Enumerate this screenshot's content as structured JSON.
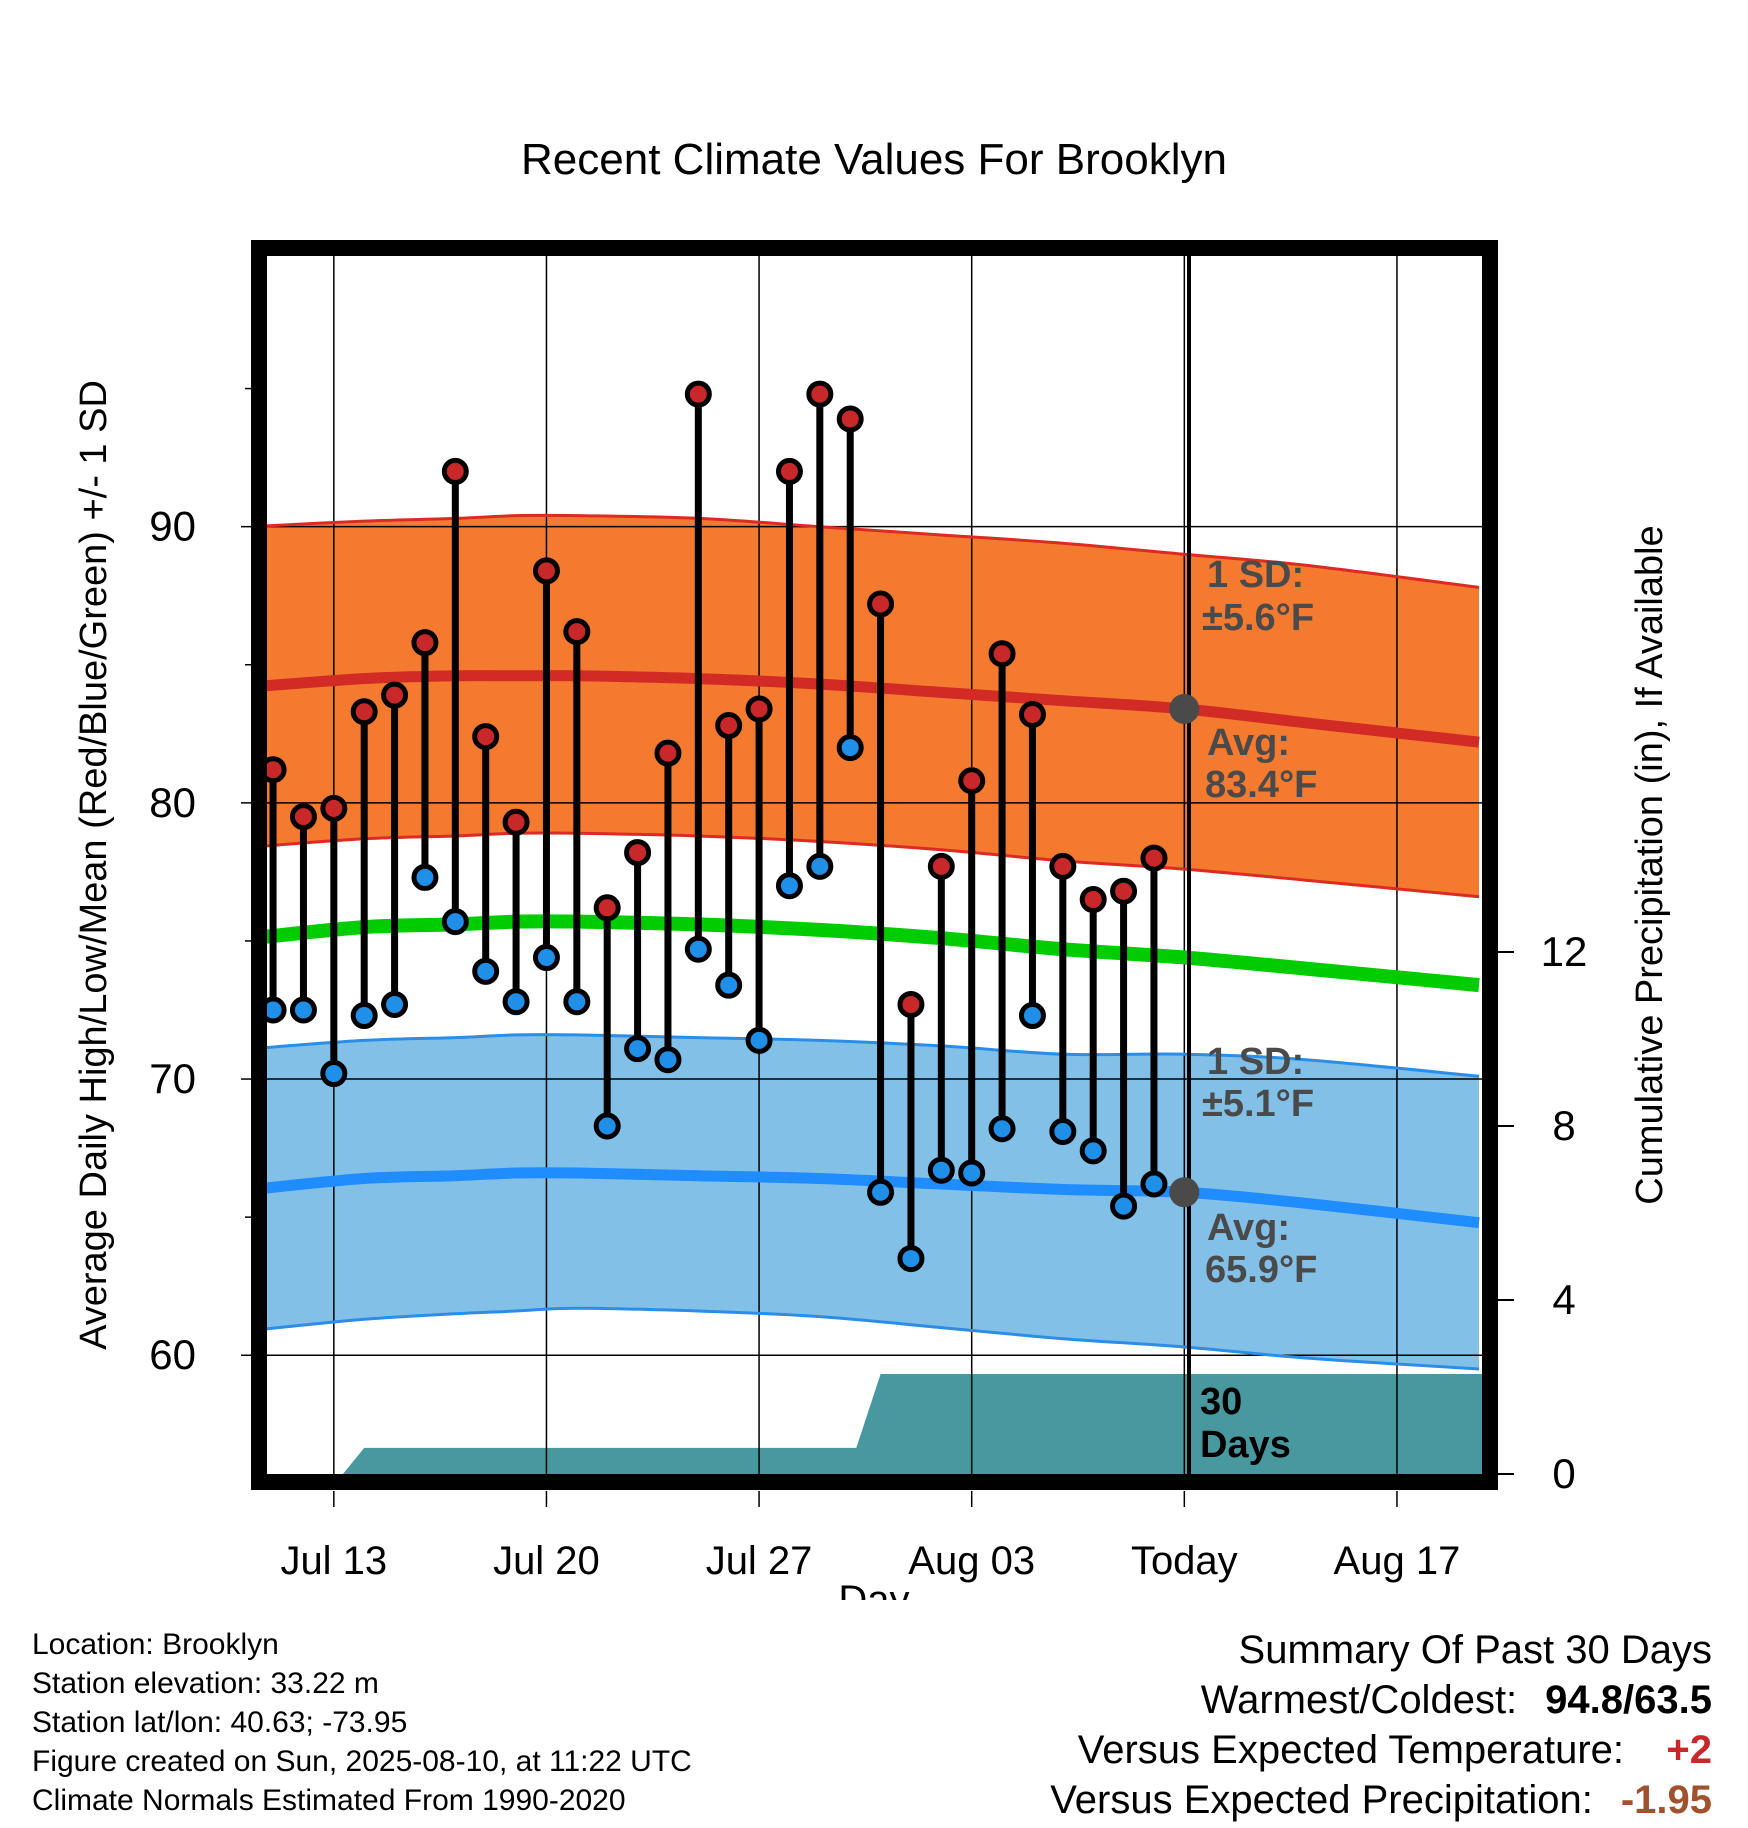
{
  "chart_data": {
    "type": "line",
    "title": "Recent Climate Values For Brooklyn",
    "xlabel": "Day",
    "ylabel": "Average Daily High/Low/Mean (Red/Blue/Green) +/- 1 SD",
    "y2label": "Cumulative Precipitation (in), If Available",
    "ylim": [
      55.7,
      99.8
    ],
    "y2lim": [
      0,
      28
    ],
    "xlim": [
      -2.2,
      37.8
    ],
    "y_ticks": [
      "60",
      "70",
      "80",
      "90"
    ],
    "y2_ticks": [
      "0",
      "4",
      "8",
      "12"
    ],
    "x_ticks": [
      {
        "day": 0,
        "label": "Jul 13"
      },
      {
        "day": 7,
        "label": "Jul 20"
      },
      {
        "day": 14,
        "label": "Jul 27"
      },
      {
        "day": 21,
        "label": "Aug 03"
      },
      {
        "day": 28,
        "label": "Today"
      },
      {
        "day": 35,
        "label": "Aug 17"
      }
    ],
    "today_day": 28,
    "grid": true,
    "normals": {
      "day": [
        -2.7,
        1,
        4,
        6,
        8,
        12,
        16,
        20,
        24,
        28,
        32,
        37.7
      ],
      "high_mean": [
        84.2,
        84.5,
        84.6,
        84.6,
        84.6,
        84.5,
        84.3,
        84.0,
        83.7,
        83.4,
        82.9,
        82.2
      ],
      "high_upper": [
        90.0,
        90.2,
        90.3,
        90.4,
        90.4,
        90.3,
        90.0,
        89.7,
        89.4,
        89.0,
        88.6,
        87.8
      ],
      "high_lower": [
        78.4,
        78.7,
        78.8,
        78.9,
        78.9,
        78.8,
        78.6,
        78.3,
        77.9,
        77.6,
        77.2,
        76.6
      ],
      "mean": [
        75.1,
        75.5,
        75.6,
        75.7,
        75.7,
        75.6,
        75.4,
        75.1,
        74.7,
        74.4,
        74.0,
        73.4
      ],
      "low_mean": [
        66.0,
        66.4,
        66.5,
        66.6,
        66.6,
        66.5,
        66.4,
        66.2,
        66.0,
        65.9,
        65.5,
        64.8
      ],
      "low_upper": [
        71.1,
        71.4,
        71.5,
        71.6,
        71.6,
        71.5,
        71.4,
        71.2,
        70.9,
        70.9,
        70.7,
        70.1
      ],
      "low_lower": [
        60.9,
        61.3,
        61.5,
        61.6,
        61.7,
        61.6,
        61.4,
        61.0,
        60.6,
        60.3,
        59.9,
        59.5
      ]
    },
    "precip": {
      "day": [
        -2.2,
        0.3,
        1,
        10,
        17.2,
        18,
        37.8
      ],
      "values": [
        0,
        0,
        0.6,
        0.6,
        0.6,
        2.3,
        2.3
      ]
    },
    "series": [
      {
        "name": "High",
        "days": [
          -2,
          -1,
          0,
          1,
          2,
          3,
          4,
          5,
          6,
          7,
          8,
          9,
          10,
          11,
          12,
          13,
          14,
          15,
          16,
          17,
          18,
          19,
          20,
          21,
          22,
          23,
          24,
          25,
          26,
          27
        ],
        "values": [
          81.2,
          79.5,
          79.8,
          83.3,
          83.9,
          85.8,
          92.0,
          82.4,
          79.3,
          88.4,
          86.2,
          76.2,
          78.2,
          81.8,
          94.8,
          82.8,
          83.4,
          92.0,
          94.8,
          93.9,
          87.2,
          72.7,
          77.7,
          80.8,
          85.4,
          83.2,
          77.7,
          76.5,
          76.8,
          78.0
        ]
      },
      {
        "name": "Low",
        "days": [
          -2,
          -1,
          0,
          1,
          2,
          3,
          4,
          5,
          6,
          7,
          8,
          9,
          10,
          11,
          12,
          13,
          14,
          15,
          16,
          17,
          18,
          19,
          20,
          21,
          22,
          23,
          24,
          25,
          26,
          27
        ],
        "values": [
          72.5,
          72.5,
          70.2,
          72.3,
          72.7,
          77.3,
          75.7,
          73.9,
          72.8,
          74.4,
          72.8,
          68.3,
          71.1,
          70.7,
          74.7,
          73.4,
          71.4,
          77.0,
          77.7,
          82.0,
          65.9,
          63.5,
          66.7,
          66.6,
          68.2,
          72.3,
          68.1,
          67.4,
          65.4,
          66.2
        ]
      }
    ],
    "annotations": {
      "high_sd_label": "1 SD:",
      "high_sd_value": "±5.6°F",
      "high_avg_label": "Avg:",
      "high_avg_value": "83.4°F",
      "high_avg": 83.4,
      "low_sd_label": "1 SD:",
      "low_sd_value": "±5.1°F",
      "low_avg_label": "Avg:",
      "low_avg_value": "65.9°F",
      "low_avg": 65.9,
      "days_label_1": "30",
      "days_label_2": "Days"
    },
    "colors": {
      "high_band": "#f47a30",
      "high_line": "#d22a24",
      "high_edge": "#dd2a22",
      "mean_line": "#00cc00",
      "low_band": "#82c0e8",
      "low_line": "#1f8cff",
      "low_edge": "#2a8ee8",
      "precip": "#48999f",
      "high_dot": "#c8282a",
      "low_dot": "#1f8fe8",
      "annotation": "#4a4a4a"
    }
  },
  "info": {
    "location": "Location: Brooklyn",
    "elevation": "Station elevation: 33.22 m",
    "latlon": "Station lat/lon: 40.63; -73.95",
    "created": "Figure created on Sun, 2025-08-10, at 11:22 UTC",
    "normals": "Climate Normals Estimated From 1990-2020"
  },
  "summary": {
    "title": "Summary Of Past 30 Days",
    "warm_cold_label": "Warmest/Coldest:",
    "warm_cold_value": "94.8/63.5",
    "temp_label": "Versus Expected Temperature:",
    "temp_value": "+2",
    "temp_color": "#c8282a",
    "precip_label": "Versus Expected Precipitation:",
    "precip_value": "-1.95",
    "precip_color": "#a0522d"
  }
}
